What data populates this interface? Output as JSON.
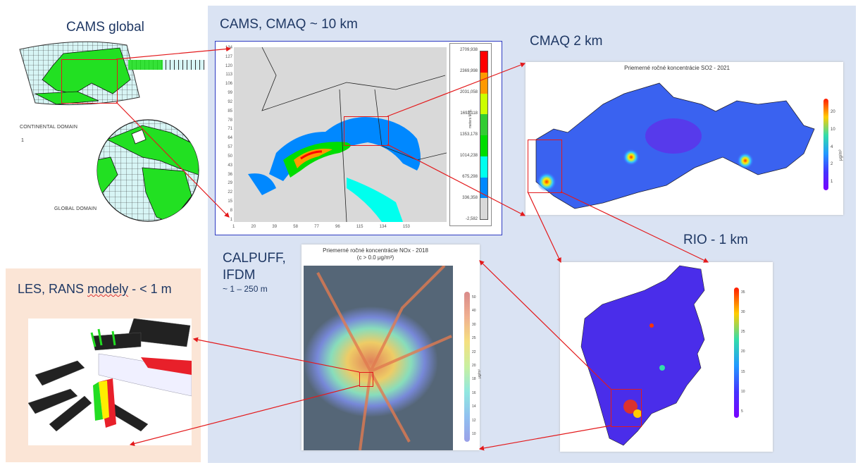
{
  "labels": {
    "cams_global": "CAMS global",
    "continental_domain": "CONTINENTAL DOMAIN",
    "global_domain": "GLOBAL DOMAIN",
    "footnote": "1",
    "cams_cmaq": "CAMS, CMAQ  ~ 10 km",
    "cmaq_2km": "CMAQ 2 km",
    "rio_1km": "RIO - 1 km",
    "calpuff_line1": "CALPUFF,",
    "calpuff_line2": "IFDM",
    "calpuff_res": "~ 1 – 250 m",
    "les_prefix": "LES, RANS ",
    "les_word": "modely",
    "les_suffix": " -  < 1 m"
  },
  "cams_chart": {
    "y_ticks": [
      "134",
      "127",
      "120",
      "113",
      "106",
      "99",
      "92",
      "85",
      "78",
      "71",
      "64",
      "57",
      "50",
      "43",
      "36",
      "29",
      "22",
      "15",
      "8",
      "1"
    ],
    "x_ticks": [
      "1",
      "20",
      "39",
      "58",
      "77",
      "96",
      "115",
      "134",
      "153"
    ],
    "colorbar_labels": [
      "2709,938",
      "2369,998",
      "2031,058",
      "1692,118",
      "1353,178",
      "1014,238",
      "675,298",
      "336,358",
      "-2,582"
    ],
    "colorbar_colors": [
      "#ff0000",
      "#ff9900",
      "#ccff00",
      "#33cc33",
      "#00dd00",
      "#00ffee",
      "#0088ff",
      "#d9d9d9"
    ],
    "colorbar_unit": "meters MSL"
  },
  "so2_map": {
    "title": "Priemerné ročné koncentrácie SO2 - 2021",
    "colorbar_ticks": [
      "20",
      "10",
      "4",
      "2",
      "1"
    ],
    "unit": "μg/m³"
  },
  "nox_map": {
    "title": "Priemerné ročné koncentrácie NOx - 2018",
    "subtitle": "(c > 0.0 μg/m³)",
    "colorbar_ticks": [
      "50",
      "40",
      "30",
      "25",
      "22",
      "20",
      "18",
      "16",
      "14",
      "12",
      "10"
    ],
    "unit": "μg/m³"
  },
  "rio_map": {
    "colorbar_ticks": [
      "35",
      "30",
      "25",
      "20",
      "15",
      "10",
      "5"
    ]
  },
  "colors": {
    "title": "#1f3864",
    "panel_blue": "#dae3f3",
    "panel_peach": "#fbe5d6",
    "arrow": "#e31a1c",
    "frame": "#2e3bc2"
  }
}
